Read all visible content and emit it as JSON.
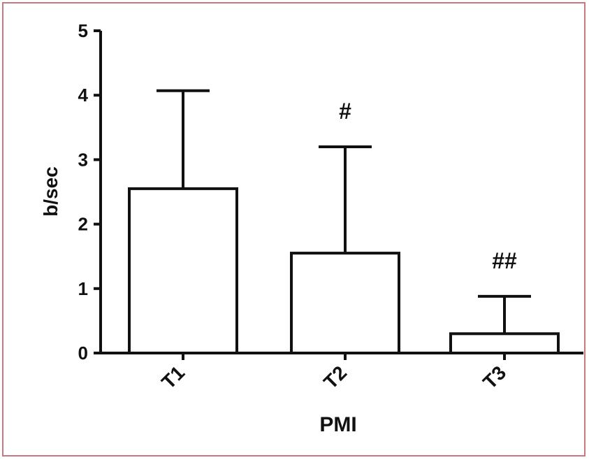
{
  "chart_data": {
    "type": "bar",
    "categories": [
      "T1",
      "T2",
      "T3"
    ],
    "values": [
      2.55,
      1.55,
      0.3
    ],
    "error_upper": [
      4.07,
      3.2,
      0.88
    ],
    "annotations": [
      "",
      "#",
      "##"
    ],
    "title": "",
    "xlabel": "PMI",
    "ylabel": "b/sec",
    "ylim": [
      0,
      5
    ],
    "yticks": [
      0,
      1,
      2,
      3,
      4,
      5
    ],
    "grid": false,
    "legend": "none",
    "colors": {
      "bar_fill": "#ffffff",
      "stroke": "#111111",
      "frame": "#c77a7e"
    }
  }
}
